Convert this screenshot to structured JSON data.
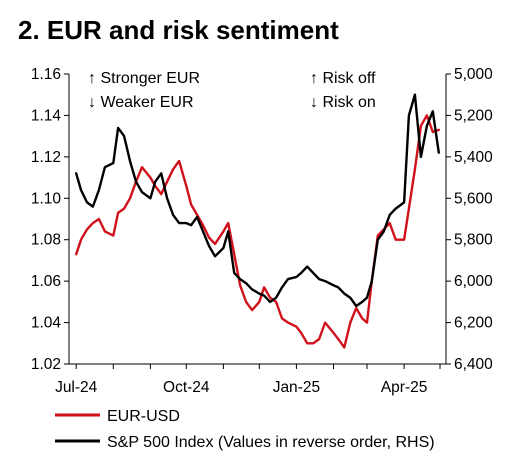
{
  "chart_data": {
    "type": "line",
    "title": "2. EUR and risk sentiment",
    "x_ticks": [
      "Jul-24",
      "Oct-24",
      "Jan-25",
      "Apr-25"
    ],
    "y_left": {
      "ticks": [
        "1.16",
        "1.14",
        "1.12",
        "1.10",
        "1.08",
        "1.06",
        "1.04",
        "1.02"
      ],
      "range": [
        1.02,
        1.16
      ]
    },
    "y_right": {
      "ticks": [
        "5,000",
        "5,200",
        "5,400",
        "5,600",
        "5,800",
        "6,000",
        "6,200",
        "6,400"
      ],
      "range": [
        5000,
        6400
      ],
      "reversed": true
    },
    "annotations": {
      "left_up": "↑ Stronger EUR",
      "left_down": "↓ Weaker EUR",
      "right_up": "↑ Risk off",
      "right_down": "↓ Risk on"
    },
    "legend": [
      "EUR-USD",
      "S&P 500 Index (Values in reverse order, RHS)"
    ],
    "grid": false,
    "colors": {
      "eurusd": "#d0111b",
      "spx": "#000000"
    },
    "series": [
      {
        "name": "EUR-USD",
        "axis": "left",
        "x": [
          "2024-07-01",
          "2024-07-05",
          "2024-07-10",
          "2024-07-15",
          "2024-07-20",
          "2024-07-25",
          "2024-08-01",
          "2024-08-05",
          "2024-08-10",
          "2024-08-15",
          "2024-08-20",
          "2024-08-25",
          "2024-09-01",
          "2024-09-05",
          "2024-09-10",
          "2024-09-15",
          "2024-09-20",
          "2024-09-25",
          "2024-10-01",
          "2024-10-05",
          "2024-10-10",
          "2024-10-15",
          "2024-10-20",
          "2024-10-25",
          "2024-11-01",
          "2024-11-05",
          "2024-11-10",
          "2024-11-15",
          "2024-11-20",
          "2024-11-25",
          "2024-12-01",
          "2024-12-05",
          "2024-12-10",
          "2024-12-15",
          "2024-12-20",
          "2024-12-25",
          "2025-01-01",
          "2025-01-05",
          "2025-01-10",
          "2025-01-15",
          "2025-01-20",
          "2025-01-25",
          "2025-02-01",
          "2025-02-05",
          "2025-02-10",
          "2025-02-15",
          "2025-02-20",
          "2025-02-25",
          "2025-03-01",
          "2025-03-05",
          "2025-03-10",
          "2025-03-15",
          "2025-03-20",
          "2025-03-25",
          "2025-04-01",
          "2025-04-05",
          "2025-04-10",
          "2025-04-15",
          "2025-04-20",
          "2025-04-25",
          "2025-04-30"
        ],
        "values": [
          1.073,
          1.08,
          1.085,
          1.088,
          1.09,
          1.084,
          1.082,
          1.093,
          1.095,
          1.1,
          1.108,
          1.115,
          1.11,
          1.106,
          1.102,
          1.108,
          1.114,
          1.118,
          1.106,
          1.097,
          1.092,
          1.087,
          1.081,
          1.078,
          1.084,
          1.088,
          1.073,
          1.058,
          1.05,
          1.046,
          1.05,
          1.057,
          1.052,
          1.05,
          1.042,
          1.04,
          1.038,
          1.035,
          1.03,
          1.03,
          1.032,
          1.04,
          1.035,
          1.032,
          1.028,
          1.04,
          1.047,
          1.042,
          1.04,
          1.06,
          1.082,
          1.085,
          1.088,
          1.08,
          1.08,
          1.095,
          1.114,
          1.135,
          1.14,
          1.132,
          1.133
        ]
      },
      {
        "name": "S&P 500 Index (Values in reverse order, RHS)",
        "axis": "right",
        "x": [
          "2024-07-01",
          "2024-07-05",
          "2024-07-10",
          "2024-07-15",
          "2024-07-20",
          "2024-07-25",
          "2024-08-01",
          "2024-08-05",
          "2024-08-10",
          "2024-08-15",
          "2024-08-20",
          "2024-08-25",
          "2024-09-01",
          "2024-09-05",
          "2024-09-10",
          "2024-09-15",
          "2024-09-20",
          "2024-09-25",
          "2024-10-01",
          "2024-10-05",
          "2024-10-10",
          "2024-10-15",
          "2024-10-20",
          "2024-10-25",
          "2024-11-01",
          "2024-11-05",
          "2024-11-10",
          "2024-11-15",
          "2024-11-20",
          "2024-11-25",
          "2024-12-01",
          "2024-12-05",
          "2024-12-10",
          "2024-12-15",
          "2024-12-20",
          "2024-12-25",
          "2025-01-01",
          "2025-01-05",
          "2025-01-10",
          "2025-01-15",
          "2025-01-20",
          "2025-01-25",
          "2025-02-01",
          "2025-02-05",
          "2025-02-10",
          "2025-02-15",
          "2025-02-20",
          "2025-02-25",
          "2025-03-01",
          "2025-03-05",
          "2025-03-10",
          "2025-03-15",
          "2025-03-20",
          "2025-03-25",
          "2025-04-01",
          "2025-04-05",
          "2025-04-10",
          "2025-04-15",
          "2025-04-20",
          "2025-04-25",
          "2025-04-30"
        ],
        "values": [
          5480,
          5560,
          5620,
          5640,
          5560,
          5450,
          5430,
          5260,
          5300,
          5420,
          5520,
          5570,
          5600,
          5520,
          5480,
          5600,
          5680,
          5720,
          5720,
          5730,
          5690,
          5760,
          5830,
          5880,
          5840,
          5760,
          5960,
          5990,
          6010,
          6040,
          6060,
          6070,
          6100,
          6080,
          6030,
          5990,
          5980,
          5960,
          5930,
          5960,
          5990,
          6000,
          6020,
          6030,
          6060,
          6080,
          6120,
          6100,
          6080,
          6000,
          5800,
          5760,
          5680,
          5650,
          5620,
          5200,
          5100,
          5400,
          5250,
          5180,
          5380
        ]
      }
    ]
  }
}
